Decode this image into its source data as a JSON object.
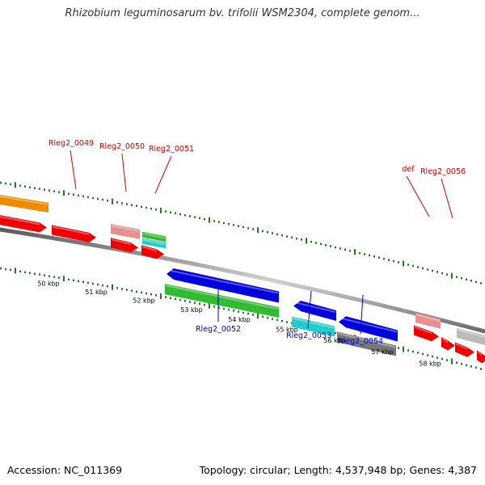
{
  "title": "Rhizobium leguminosarum bv. trifolii WSM2304, complete genom...",
  "footer": {
    "accession": "Accession: NC_011369",
    "summary": "Topology: circular; Length: 4,537,948 bp; Genes: 4,387"
  },
  "scale_labels": [
    "50 kbp",
    "51 kbp",
    "52 kbp",
    "53 kbp",
    "54 kbp",
    "55 kbp",
    "56 kbp",
    "57 kbp",
    "58 kbp"
  ],
  "gene_labels": [
    {
      "text": "Rleg2_0049",
      "strand": "forward"
    },
    {
      "text": "Rleg2_0050",
      "strand": "forward"
    },
    {
      "text": "Rleg2_0051",
      "strand": "forward"
    },
    {
      "text": "def",
      "strand": "forward"
    },
    {
      "text": "Rleg2_0056",
      "strand": "forward"
    },
    {
      "text": "Rleg2_0052",
      "strand": "reverse"
    },
    {
      "text": "Rleg2_0053",
      "strand": "reverse"
    },
    {
      "text": "Rleg2_0054",
      "strand": "reverse"
    }
  ],
  "colors": {
    "forward_label": "#cc0000",
    "reverse_label": "#0000cc",
    "cds": "#ee0000",
    "orange": "#f08a00",
    "pink": "#e89090",
    "green": "#33bb33",
    "cyan": "#22cccc",
    "blue": "#0000dd",
    "gray": "#777777",
    "light_gray": "#bbbbbb",
    "tick": "#1f7a1f",
    "backbone": "#888888"
  }
}
